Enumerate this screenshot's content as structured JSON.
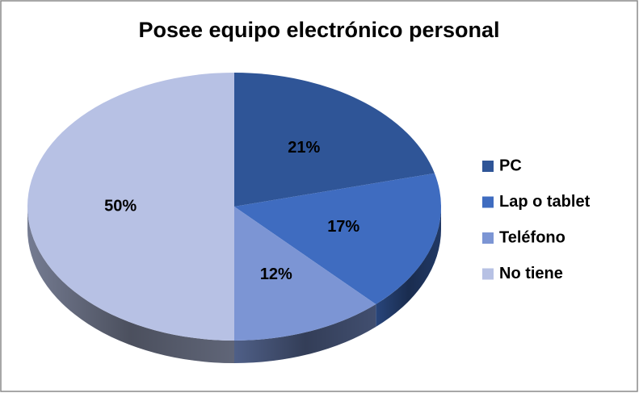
{
  "chart_data": {
    "type": "pie",
    "title": "Posee equipo electrónico personal",
    "categories": [
      "PC",
      "Lap o tablet",
      "Teléfono",
      "No tiene"
    ],
    "values": [
      21,
      17,
      12,
      50
    ],
    "value_labels": [
      "21%",
      "17%",
      "12%",
      "50%"
    ],
    "colors": [
      "#2F5597",
      "#3F6CC0",
      "#7C95D4",
      "#B7C1E4"
    ],
    "legend": "right"
  }
}
